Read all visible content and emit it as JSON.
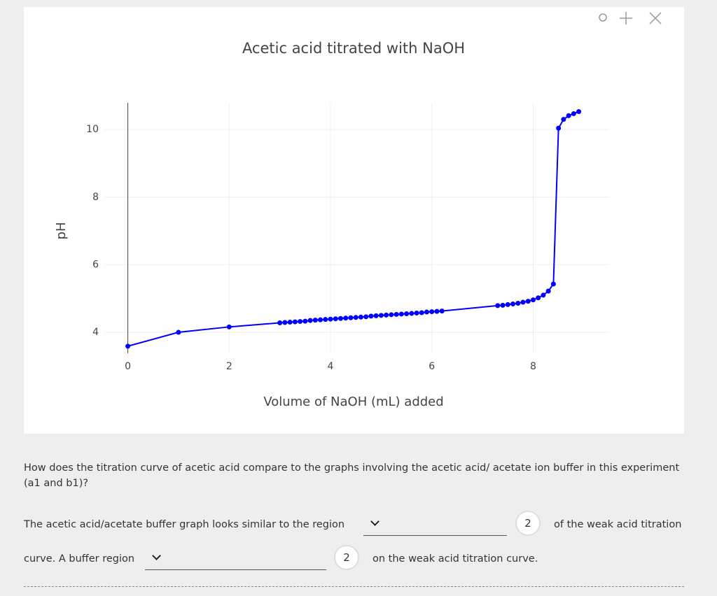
{
  "chart_data": {
    "type": "line",
    "title": "Acetic acid titrated with NaOH",
    "x_label": "Volume of NaOH (mL) added",
    "y_label": "pH",
    "x": [
      0,
      1,
      2,
      3.0,
      3.1,
      3.2,
      3.3,
      3.4,
      3.5,
      3.6,
      3.7,
      3.8,
      3.9,
      4.0,
      4.1,
      4.2,
      4.3,
      4.4,
      4.5,
      4.6,
      4.7,
      4.8,
      4.9,
      5.0,
      5.1,
      5.2,
      5.3,
      5.4,
      5.5,
      5.6,
      5.7,
      5.8,
      5.9,
      6.0,
      6.1,
      6.2,
      7.3,
      7.4,
      7.5,
      7.6,
      7.7,
      7.8,
      7.9,
      8.0,
      8.1,
      8.2,
      8.3,
      8.4,
      8.5,
      8.6,
      8.7,
      8.8,
      8.9
    ],
    "series": [
      {
        "name": "pH",
        "color": "#0000ff",
        "values": [
          3.59,
          4.0,
          4.16,
          4.28,
          4.29,
          4.3,
          4.31,
          4.32,
          4.33,
          4.35,
          4.36,
          4.37,
          4.38,
          4.39,
          4.4,
          4.41,
          4.42,
          4.43,
          4.44,
          4.45,
          4.46,
          4.48,
          4.49,
          4.5,
          4.51,
          4.52,
          4.53,
          4.54,
          4.55,
          4.56,
          4.57,
          4.58,
          4.6,
          4.61,
          4.62,
          4.63,
          4.79,
          4.8,
          4.82,
          4.84,
          4.86,
          4.89,
          4.92,
          4.96,
          5.02,
          5.1,
          5.22,
          5.43,
          10.04,
          10.3,
          10.41,
          10.47,
          10.53
        ]
      }
    ],
    "xlim": [
      -0.45,
      9.5
    ],
    "ylim": [
      3.38,
      10.79
    ],
    "xticks": [
      0,
      2,
      4,
      6,
      8
    ],
    "yticks": [
      4,
      6,
      8,
      10
    ],
    "grid": true
  },
  "question": {
    "text": "How does the titration curve of acetic acid compare to the graphs involving the acetic acid/ acetate ion buffer in this experiment (a1 and b1)?",
    "line1_before": "The acetic acid/acetate buffer graph looks similar to the region",
    "line1_badge": "2",
    "line1_after": "of the weak acid titration",
    "line2_before": "curve. A buffer region",
    "line2_badge": "2",
    "line2_after": "on the weak acid titration curve."
  }
}
